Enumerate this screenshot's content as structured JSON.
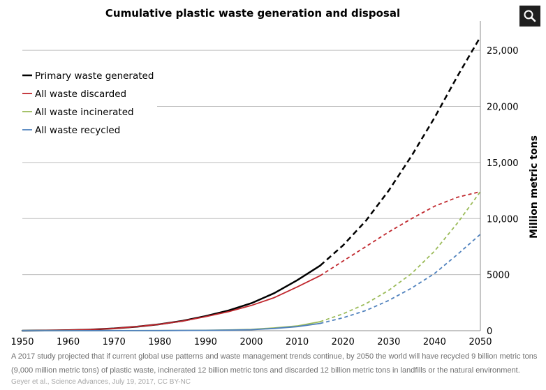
{
  "chart_data": {
    "type": "line",
    "title": "Cumulative plastic waste generation and disposal",
    "xlabel": "",
    "ylabel": "Million metric tons",
    "xlim": [
      1950,
      2050
    ],
    "ylim": [
      0,
      27000
    ],
    "x_ticks": [
      1950,
      1960,
      1970,
      1980,
      1990,
      2000,
      2010,
      2020,
      2030,
      2040,
      2050
    ],
    "y_ticks": [
      0,
      5000,
      10000,
      15000,
      20000,
      25000
    ],
    "y_tick_labels": [
      "0",
      "5000",
      "10,000",
      "15,000",
      "20,000",
      "25,000"
    ],
    "y_axis_side": "right",
    "grid": true,
    "legend_position": "top-left",
    "projection_start": 2015,
    "series": [
      {
        "name": "Primary waste generated",
        "color": "#000000",
        "x": [
          1950,
          1955,
          1960,
          1965,
          1970,
          1975,
          1980,
          1985,
          1990,
          1995,
          2000,
          2005,
          2010,
          2015,
          2020,
          2025,
          2030,
          2035,
          2040,
          2045,
          2050
        ],
        "y": [
          0,
          20,
          50,
          100,
          200,
          360,
          580,
          880,
          1300,
          1800,
          2450,
          3350,
          4500,
          5800,
          7600,
          9800,
          12500,
          15600,
          19000,
          22700,
          26200
        ]
      },
      {
        "name": "All waste discarded",
        "color": "#c0272d",
        "x": [
          1950,
          1955,
          1960,
          1965,
          1970,
          1975,
          1980,
          1985,
          1990,
          1995,
          2000,
          2005,
          2010,
          2015,
          2020,
          2025,
          2030,
          2035,
          2040,
          2045,
          2050
        ],
        "y": [
          0,
          20,
          50,
          100,
          200,
          360,
          570,
          860,
          1250,
          1700,
          2250,
          2950,
          3900,
          4900,
          6200,
          7500,
          8800,
          10000,
          11100,
          11900,
          12400
        ]
      },
      {
        "name": "All waste incinerated",
        "color": "#9bbb59",
        "x": [
          1950,
          1960,
          1970,
          1980,
          1990,
          1995,
          2000,
          2005,
          2010,
          2015,
          2020,
          2025,
          2030,
          2035,
          2040,
          2045,
          2050
        ],
        "y": [
          0,
          0,
          5,
          15,
          40,
          70,
          120,
          250,
          420,
          800,
          1500,
          2400,
          3600,
          5100,
          7100,
          9600,
          12400
        ]
      },
      {
        "name": "All waste recycled",
        "color": "#4f81bd",
        "x": [
          1950,
          1960,
          1970,
          1980,
          1990,
          1995,
          2000,
          2005,
          2010,
          2015,
          2020,
          2025,
          2030,
          2035,
          2040,
          2045,
          2050
        ],
        "y": [
          0,
          0,
          5,
          10,
          30,
          50,
          90,
          200,
          360,
          650,
          1150,
          1800,
          2700,
          3800,
          5100,
          6800,
          8600
        ]
      }
    ]
  },
  "caption": "A 2017 study projected that if current global use patterns and waste management trends continue, by 2050 the world will have recycled 9 billion metric tons (9,000 million metric tons) of plastic waste, incinerated 12 billion metric tons and discarded 12 billion metric tons in landfills or the natural environment.",
  "credit": "Geyer et al., Science Advances, July 19, 2017, CC BY-NC",
  "zoom_button": {
    "icon": "magnifier-icon",
    "background": "#1f1f1f",
    "icon_color": "#ffffff"
  }
}
